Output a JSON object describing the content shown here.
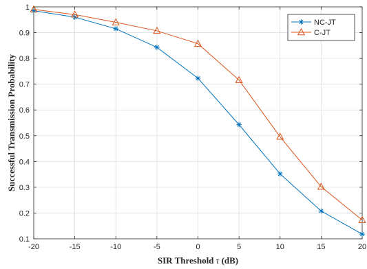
{
  "chart_data": {
    "type": "line",
    "xlabel_main": "SIR Threshold ",
    "xlabel_symbol": "τ",
    "xlabel_unit": " (dB)",
    "ylabel": "Successful Transmission Probability",
    "xlim": [
      -20,
      20
    ],
    "ylim": [
      0.1,
      1
    ],
    "xticks": [
      -20,
      -15,
      -10,
      -5,
      0,
      5,
      10,
      15,
      20
    ],
    "yticks": [
      0.1,
      0.2,
      0.3,
      0.4,
      0.5,
      0.6,
      0.7,
      0.8,
      0.9,
      1
    ],
    "grid": true,
    "legend_position": "top-right",
    "x": [
      -20,
      -15,
      -10,
      -5,
      0,
      5,
      10,
      15,
      20
    ],
    "series": [
      {
        "name": "NC-JT",
        "color": "#0072BD",
        "marker": "asterisk",
        "values": [
          0.985,
          0.96,
          0.915,
          0.843,
          0.723,
          0.543,
          0.352,
          0.208,
          0.118
        ]
      },
      {
        "name": "C-JT",
        "color": "#D95319",
        "marker": "triangle",
        "values": [
          0.99,
          0.97,
          0.94,
          0.907,
          0.857,
          0.716,
          0.496,
          0.302,
          0.173
        ]
      }
    ]
  }
}
